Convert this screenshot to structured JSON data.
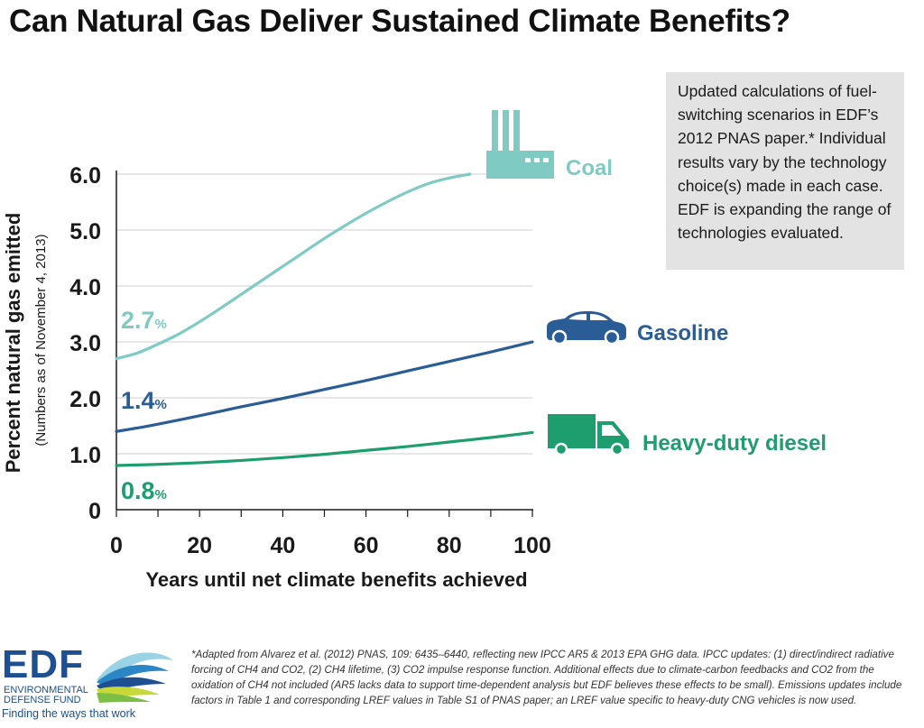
{
  "title": "Can Natural Gas Deliver Sustained Climate Benefits?",
  "note_box": "Updated calculations of fuel-switching scenarios in EDF’s 2012 PNAS paper.* Individual results vary by the technology choice(s) made in each case. EDF is expanding the range of technologies evaluated.",
  "colors": {
    "coal": "#7fcbc4",
    "gasoline": "#2a5d96",
    "diesel": "#1e9e6f",
    "axis": "#1a1a1a",
    "grid": "#cfcfcf",
    "note_bg": "#e3e3e3"
  },
  "chart_data": {
    "type": "line",
    "title": "Can Natural Gas Deliver Sustained Climate Benefits?",
    "xlabel": "Years until net climate benefits achieved",
    "ylabel": "Percent natural gas emitted",
    "ylabel_sub": "(Numbers as of November 4, 2013)",
    "xlim": [
      0,
      100
    ],
    "ylim": [
      0,
      6.0
    ],
    "x_ticks": [
      "0",
      "20",
      "40",
      "60",
      "80",
      "100"
    ],
    "y_ticks": [
      "0",
      "1.0",
      "2.0",
      "3.0",
      "4.0",
      "5.0",
      "6.0"
    ],
    "grid": "horizontal",
    "series": [
      {
        "name": "Coal",
        "start_label": "2.7",
        "unit": "%",
        "x": [
          0,
          5,
          10,
          15,
          20,
          25,
          30,
          35,
          40,
          45,
          50,
          55,
          60,
          65,
          70,
          75,
          80,
          85
        ],
        "y": [
          2.7,
          2.8,
          2.96,
          3.14,
          3.36,
          3.6,
          3.85,
          4.1,
          4.35,
          4.6,
          4.85,
          5.08,
          5.3,
          5.5,
          5.68,
          5.83,
          5.93,
          6.0
        ]
      },
      {
        "name": "Gasoline",
        "start_label": "1.4",
        "unit": "%",
        "x": [
          0,
          5,
          10,
          20,
          30,
          40,
          50,
          60,
          70,
          80,
          90,
          100
        ],
        "y": [
          1.4,
          1.46,
          1.53,
          1.68,
          1.84,
          1.99,
          2.15,
          2.31,
          2.48,
          2.65,
          2.82,
          3.0
        ]
      },
      {
        "name": "Heavy-duty diesel",
        "start_label": "0.8",
        "unit": "%",
        "x": [
          0,
          10,
          20,
          30,
          40,
          50,
          60,
          70,
          80,
          90,
          100
        ],
        "y": [
          0.79,
          0.81,
          0.84,
          0.88,
          0.93,
          0.99,
          1.06,
          1.13,
          1.21,
          1.29,
          1.38
        ]
      }
    ],
    "icons": [
      "factory-icon",
      "car-icon",
      "truck-icon"
    ]
  },
  "logo": {
    "letters": "EDF",
    "org": "ENVIRONMENTAL DEFENSE FUND",
    "tagline": "Finding the ways that work"
  },
  "footnote": "*Adapted from Alvarez et al. (2012) PNAS, 109: 6435–6440, reflecting new IPCC AR5 & 2013 EPA GHG data. IPCC updates: (1) direct/indirect radiative forcing of CH4 and CO2, (2) CH4 lifetime, (3) CO2 impulse response function. Additional effects due to climate-carbon feedbacks and CO2 from the oxidation of CH4 not included (AR5 lacks data to support time-dependent analysis but EDF believes these effects to be small). Emissions updates include factors in Table 1 and corresponding LREF values in Table S1 of PNAS paper; an LREF value specific to heavy-duty CNG vehicles is now used."
}
